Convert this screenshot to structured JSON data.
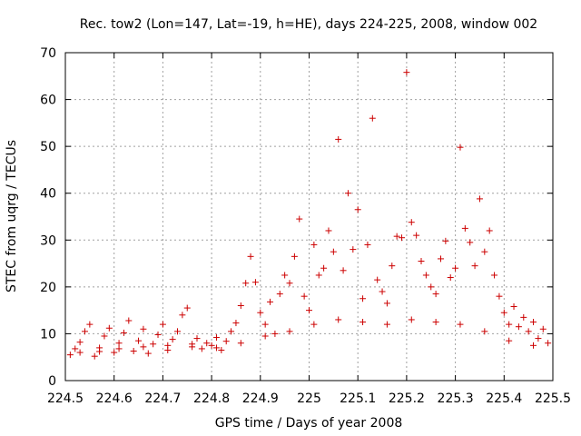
{
  "chart_data": {
    "type": "scatter",
    "title": "Rec. tow2 (Lon=147, Lat=-19, h=HE), days 224-225, 2008, window 002",
    "xlabel": "GPS time / Days of year 2008",
    "ylabel": "STEC from uqrg / TECUs",
    "xlim": [
      224.5,
      225.5
    ],
    "ylim": [
      0,
      70
    ],
    "xticks": [
      "224.5",
      "224.6",
      "224.7",
      "224.8",
      "224.9",
      "225",
      "225.1",
      "225.2",
      "225.3",
      "225.4",
      "225.5"
    ],
    "yticks": [
      "0",
      "10",
      "20",
      "30",
      "40",
      "50",
      "60",
      "70"
    ],
    "grid": true,
    "marker": "+",
    "marker_color": "#cc0000",
    "series": [
      {
        "points": [
          [
            224.51,
            5.5
          ],
          [
            224.52,
            6.8
          ],
          [
            224.53,
            8.2
          ],
          [
            224.54,
            10.5
          ],
          [
            224.55,
            12.0
          ],
          [
            224.56,
            5.2
          ],
          [
            224.57,
            7.0
          ],
          [
            224.58,
            9.5
          ],
          [
            224.59,
            11.2
          ],
          [
            224.6,
            6.0
          ],
          [
            224.61,
            8.0
          ],
          [
            224.62,
            10.2
          ],
          [
            224.63,
            12.8
          ],
          [
            224.64,
            6.3
          ],
          [
            224.65,
            8.5
          ],
          [
            224.66,
            11.0
          ],
          [
            224.67,
            5.8
          ],
          [
            224.68,
            7.8
          ],
          [
            224.69,
            9.8
          ],
          [
            224.7,
            12.0
          ],
          [
            224.71,
            6.5
          ],
          [
            224.72,
            8.8
          ],
          [
            224.73,
            10.5
          ],
          [
            224.74,
            14.0
          ],
          [
            224.75,
            15.5
          ],
          [
            224.76,
            7.2
          ],
          [
            224.77,
            9.0
          ],
          [
            224.78,
            6.8
          ],
          [
            224.79,
            8.0
          ],
          [
            224.8,
            7.5
          ],
          [
            224.81,
            9.2
          ],
          [
            224.82,
            6.5
          ],
          [
            224.83,
            8.4
          ],
          [
            224.84,
            10.5
          ],
          [
            224.85,
            12.3
          ],
          [
            224.86,
            16.0
          ],
          [
            224.87,
            20.8
          ],
          [
            224.88,
            26.5
          ],
          [
            224.89,
            21.0
          ],
          [
            224.9,
            14.5
          ],
          [
            224.91,
            12.0
          ],
          [
            224.92,
            16.8
          ],
          [
            224.93,
            10.0
          ],
          [
            224.94,
            18.5
          ],
          [
            224.95,
            22.5
          ],
          [
            224.96,
            20.8
          ],
          [
            224.97,
            26.5
          ],
          [
            224.98,
            34.5
          ],
          [
            224.99,
            18.0
          ],
          [
            225.0,
            15.0
          ],
          [
            225.01,
            29.0
          ],
          [
            225.02,
            22.5
          ],
          [
            225.03,
            24.0
          ],
          [
            225.04,
            32.0
          ],
          [
            225.05,
            27.5
          ],
          [
            225.06,
            51.5
          ],
          [
            225.07,
            23.5
          ],
          [
            225.08,
            40.0
          ],
          [
            225.09,
            28.0
          ],
          [
            225.1,
            36.5
          ],
          [
            225.11,
            17.5
          ],
          [
            225.12,
            29.0
          ],
          [
            225.13,
            56.0
          ],
          [
            225.14,
            21.5
          ],
          [
            225.15,
            19.0
          ],
          [
            225.16,
            16.5
          ],
          [
            225.17,
            24.5
          ],
          [
            225.18,
            30.8
          ],
          [
            225.19,
            30.5
          ],
          [
            225.2,
            65.8
          ],
          [
            225.21,
            33.8
          ],
          [
            225.22,
            31.0
          ],
          [
            225.23,
            25.5
          ],
          [
            225.24,
            22.5
          ],
          [
            225.25,
            20.0
          ],
          [
            225.26,
            18.5
          ],
          [
            225.27,
            26.0
          ],
          [
            225.28,
            29.8
          ],
          [
            225.29,
            22.0
          ],
          [
            225.3,
            24.0
          ],
          [
            225.31,
            49.8
          ],
          [
            225.32,
            32.5
          ],
          [
            225.33,
            29.5
          ],
          [
            225.34,
            24.5
          ],
          [
            225.35,
            38.8
          ],
          [
            225.36,
            27.5
          ],
          [
            225.37,
            32.0
          ],
          [
            225.38,
            22.5
          ],
          [
            225.39,
            18.0
          ],
          [
            225.4,
            14.5
          ],
          [
            225.41,
            12.0
          ],
          [
            225.42,
            15.8
          ],
          [
            225.43,
            11.5
          ],
          [
            225.44,
            13.5
          ],
          [
            225.45,
            10.5
          ],
          [
            225.46,
            12.5
          ],
          [
            225.47,
            9.0
          ],
          [
            225.48,
            11.0
          ],
          [
            225.49,
            8.0
          ],
          [
            224.53,
            6.0
          ],
          [
            224.57,
            6.2
          ],
          [
            224.61,
            6.8
          ],
          [
            224.66,
            7.2
          ],
          [
            224.71,
            7.5
          ],
          [
            224.76,
            7.8
          ],
          [
            224.81,
            7.0
          ],
          [
            224.86,
            8.0
          ],
          [
            224.91,
            9.5
          ],
          [
            224.96,
            10.5
          ],
          [
            225.01,
            12.0
          ],
          [
            225.06,
            13.0
          ],
          [
            225.11,
            12.5
          ],
          [
            225.16,
            12.0
          ],
          [
            225.21,
            13.0
          ],
          [
            225.26,
            12.5
          ],
          [
            225.31,
            12.0
          ],
          [
            225.36,
            10.5
          ],
          [
            225.41,
            8.5
          ],
          [
            225.46,
            7.5
          ]
        ]
      }
    ]
  }
}
